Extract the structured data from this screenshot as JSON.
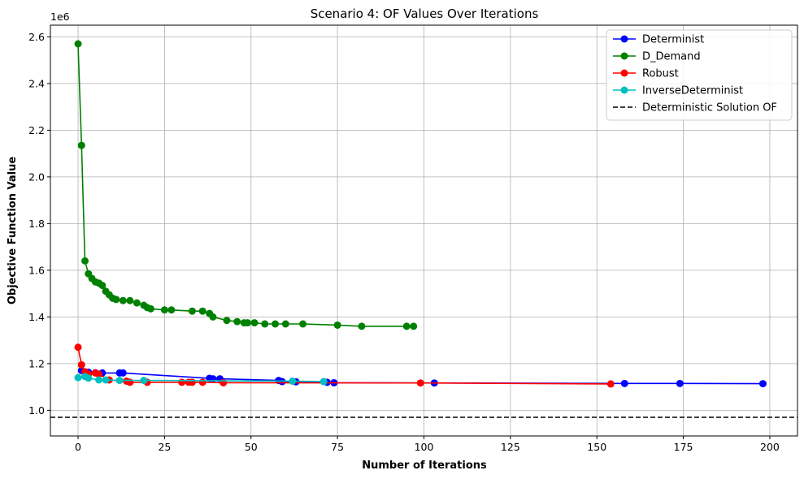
{
  "chart_data": {
    "type": "line",
    "title": "Scenario 4: OF Values Over Iterations",
    "xlabel": "Number of Iterations",
    "ylabel": "Objective Function Value",
    "y_offset_label": "1e6",
    "xlim": [
      -8,
      208
    ],
    "ylim": [
      0.89,
      2.65
    ],
    "x_ticks": [
      0,
      25,
      50,
      75,
      100,
      125,
      150,
      175,
      200
    ],
    "x_tick_labels": [
      "0",
      "25",
      "50",
      "75",
      "100",
      "125",
      "150",
      "175",
      "200"
    ],
    "y_ticks": [
      1.0,
      1.2,
      1.4,
      1.6,
      1.8,
      2.0,
      2.2,
      2.4,
      2.6
    ],
    "y_tick_labels": [
      "1.0",
      "1.2",
      "1.4",
      "1.6",
      "1.8",
      "2.0",
      "2.2",
      "2.4",
      "2.6"
    ],
    "grid": true,
    "legend_position": "top-right",
    "series": [
      {
        "name": "Determinist",
        "color": "#0000ff",
        "x": [
          1,
          2,
          3,
          5,
          7,
          12,
          13,
          38,
          39,
          41,
          58,
          59,
          63,
          72,
          74,
          103,
          158,
          174,
          198
        ],
        "y": [
          1.17,
          1.165,
          1.163,
          1.161,
          1.16,
          1.16,
          1.16,
          1.137,
          1.135,
          1.135,
          1.128,
          1.123,
          1.122,
          1.12,
          1.118,
          1.117,
          1.115,
          1.115,
          1.114
        ]
      },
      {
        "name": "D_Demand",
        "color": "#008000",
        "x": [
          0,
          1,
          2,
          3,
          4,
          5,
          6,
          7,
          8,
          9,
          10,
          11,
          13,
          15,
          17,
          19,
          20,
          21,
          25,
          27,
          33,
          36,
          38,
          39,
          43,
          46,
          48,
          49,
          51,
          54,
          57,
          60,
          65,
          75,
          82,
          95,
          97
        ],
        "y": [
          2.57,
          2.135,
          1.64,
          1.585,
          1.565,
          1.55,
          1.545,
          1.535,
          1.51,
          1.495,
          1.48,
          1.475,
          1.47,
          1.47,
          1.46,
          1.45,
          1.44,
          1.435,
          1.43,
          1.43,
          1.425,
          1.425,
          1.415,
          1.4,
          1.385,
          1.38,
          1.375,
          1.375,
          1.375,
          1.37,
          1.37,
          1.37,
          1.37,
          1.365,
          1.36,
          1.36,
          1.36
        ]
      },
      {
        "name": "Robust",
        "color": "#ff0000",
        "x": [
          0,
          1,
          2,
          3,
          5,
          6,
          9,
          14,
          15,
          20,
          30,
          32,
          33,
          36,
          42,
          99,
          154
        ],
        "y": [
          1.27,
          1.195,
          1.165,
          1.155,
          1.16,
          1.155,
          1.13,
          1.125,
          1.12,
          1.12,
          1.12,
          1.12,
          1.12,
          1.12,
          1.118,
          1.117,
          1.113
        ]
      },
      {
        "name": "InverseDeterminist",
        "color": "#00bfbf",
        "x": [
          0,
          2,
          3,
          6,
          8,
          12,
          19,
          62,
          71
        ],
        "y": [
          1.14,
          1.145,
          1.138,
          1.13,
          1.13,
          1.128,
          1.128,
          1.125,
          1.123
        ]
      }
    ],
    "reference_line": {
      "name": "Deterministic Solution OF",
      "y": 0.97,
      "color": "#000000",
      "style": "dashed"
    }
  }
}
